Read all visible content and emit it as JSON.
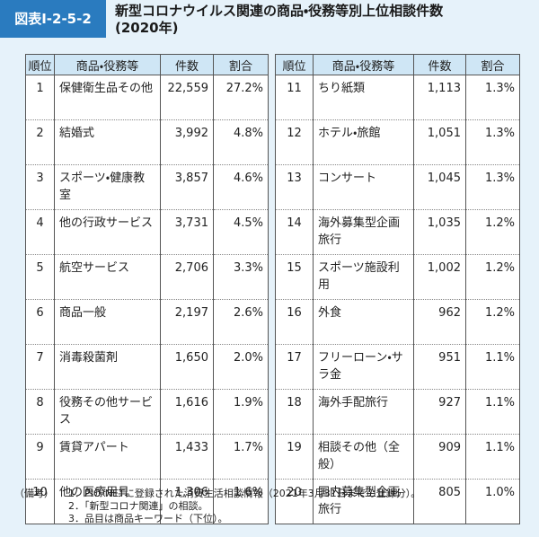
{
  "header": {
    "label": "図表Ⅰ-2-5-2",
    "title": "新型コロナウイルス関連の商品・役務等別上位相談件数",
    "subtitle": "(2020年)"
  },
  "tables": [
    {
      "header": [
        "順位",
        "商品・役務等",
        "件数",
        "割合"
      ],
      "rows": [
        [
          "1",
          "保健衛生品その他",
          "22,559",
          "27.2%"
        ],
        [
          "2",
          "結婚式",
          "3,992",
          "4.8%"
        ],
        [
          "3",
          "スポーツ・健康教室",
          "3,857",
          "4.6%"
        ],
        [
          "4",
          "他の行政サービス",
          "3,731",
          "4.5%"
        ],
        [
          "5",
          "航空サービス",
          "2,706",
          "3.3%"
        ],
        [
          "6",
          "商品一般",
          "2,197",
          "2.6%"
        ],
        [
          "7",
          "消毒殺菌剤",
          "1,650",
          "2.0%"
        ],
        [
          "8",
          "役務その他サービス",
          "1,616",
          "1.9%"
        ],
        [
          "9",
          "賃貸アパート",
          "1,433",
          "1.7%"
        ],
        [
          "10",
          "他の医療用具",
          "1,306",
          "1.6%"
        ]
      ]
    },
    {
      "header": [
        "順位",
        "商品・役務等",
        "件数",
        "割合"
      ],
      "rows": [
        [
          "11",
          "ちり紙類",
          "1,113",
          "1.3%"
        ],
        [
          "12",
          "ホテル・旅館",
          "1,051",
          "1.3%"
        ],
        [
          "13",
          "コンサート",
          "1,045",
          "1.3%"
        ],
        [
          "14",
          "海外募集型企画旅行",
          "1,035",
          "1.2%"
        ],
        [
          "15",
          "スポーツ施設利用",
          "1,002",
          "1.2%"
        ],
        [
          "16",
          "外食",
          "962",
          "1.2%"
        ],
        [
          "17",
          "フリーローン・サラ金",
          "951",
          "1.1%"
        ],
        [
          "18",
          "海外手配旅行",
          "927",
          "1.1%"
        ],
        [
          "19",
          "相談その他（全般）",
          "909",
          "1.1%"
        ],
        [
          "20",
          "国内募集型企画旅行",
          "805",
          "1.0%"
        ]
      ]
    }
  ],
  "notes": {
    "label": "（備考）",
    "items": [
      "1．PIO-NETに登録された消費生活相談情報（2021年3月31日までの登録分）。",
      "2．「新型コロナ関連」の相談。",
      "3．品目は商品キーワード（下位）。"
    ]
  }
}
